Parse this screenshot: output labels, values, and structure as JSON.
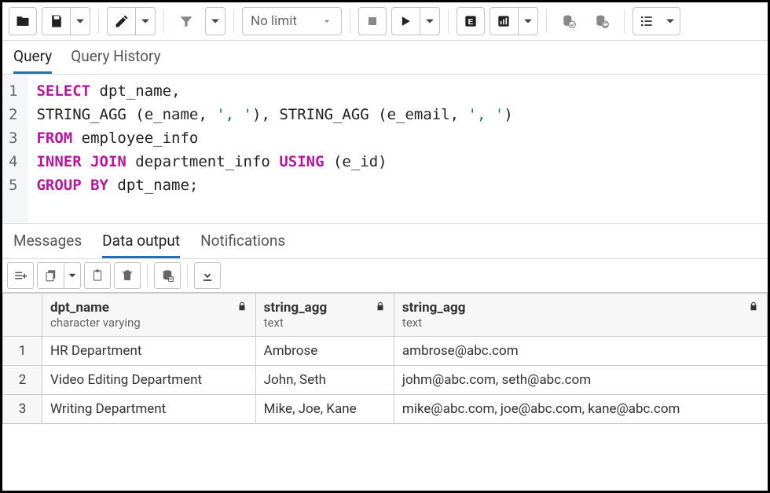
{
  "toolbar": {
    "limit_label": "No limit"
  },
  "editor_tabs": {
    "query": "Query",
    "history": "Query History"
  },
  "sql": {
    "lines": [
      {
        "n": "1",
        "tokens": [
          {
            "t": "SELECT",
            "c": "kw"
          },
          {
            "t": " dpt_name,"
          }
        ]
      },
      {
        "n": "2",
        "tokens": [
          {
            "t": "STRING_AGG (e_name, "
          },
          {
            "t": "', '",
            "c": "str"
          },
          {
            "t": "), STRING_AGG (e_email, "
          },
          {
            "t": "', '",
            "c": "str"
          },
          {
            "t": ")"
          }
        ]
      },
      {
        "n": "3",
        "tokens": [
          {
            "t": "FROM",
            "c": "kw"
          },
          {
            "t": " employee_info"
          }
        ]
      },
      {
        "n": "4",
        "tokens": [
          {
            "t": "INNER JOIN",
            "c": "kw"
          },
          {
            "t": " department_info "
          },
          {
            "t": "USING",
            "c": "kw"
          },
          {
            "t": " (e_id)"
          }
        ]
      },
      {
        "n": "5",
        "tokens": [
          {
            "t": "GROUP BY",
            "c": "kw"
          },
          {
            "t": " dpt_name;"
          }
        ]
      }
    ]
  },
  "result_tabs": {
    "messages": "Messages",
    "data_output": "Data output",
    "notifications": "Notifications"
  },
  "results": {
    "columns": [
      {
        "name": "dpt_name",
        "type": "character varying"
      },
      {
        "name": "string_agg",
        "type": "text"
      },
      {
        "name": "string_agg",
        "type": "text"
      }
    ],
    "rows": [
      {
        "n": "1",
        "cells": [
          "HR Department",
          "Ambrose",
          "ambrose@abc.com"
        ]
      },
      {
        "n": "2",
        "cells": [
          "Video Editing Department",
          "John, Seth",
          "johm@abc.com, seth@abc.com"
        ]
      },
      {
        "n": "3",
        "cells": [
          "Writing Department",
          "Mike, Joe, Kane",
          "mike@abc.com, joe@abc.com, kane@abc.com"
        ]
      }
    ]
  },
  "colors": {
    "keyword": "#b5179e",
    "string": "#1a7f37",
    "tab_active_border": "#2b6cb0",
    "border": "#c4c4c4"
  }
}
